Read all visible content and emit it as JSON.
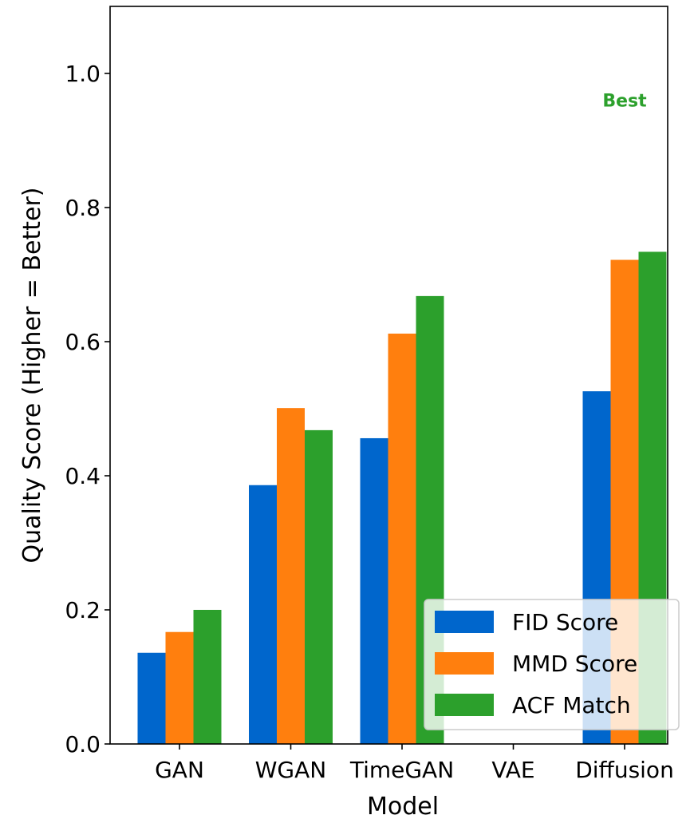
{
  "chart_data": {
    "type": "bar",
    "title": "",
    "xlabel": "Model",
    "ylabel": "Quality Score (Higher = Better)",
    "categories": [
      "GAN",
      "WGAN",
      "TimeGAN",
      "VAE",
      "Diffusion"
    ],
    "ylim": [
      0,
      1.1
    ],
    "yticks": [
      0.0,
      0.2,
      0.4,
      0.6,
      0.8,
      1.0
    ],
    "ytick_labels": [
      "0.0",
      "0.2",
      "0.4",
      "0.6",
      "0.8",
      "1.0"
    ],
    "series": [
      {
        "name": "FID Score",
        "color": "#0066cc",
        "values": [
          0.136,
          0.386,
          0.456,
          0,
          0.526
        ]
      },
      {
        "name": "MMD Score",
        "color": "#ff7f0e",
        "values": [
          0.167,
          0.501,
          0.612,
          0,
          0.722
        ]
      },
      {
        "name": "ACF Match",
        "color": "#2ca02c",
        "values": [
          0.2,
          0.468,
          0.668,
          0,
          0.734
        ]
      }
    ],
    "annotations": [
      {
        "text": "Best",
        "color": "#2ca02c",
        "category": "Diffusion",
        "y": 0.96
      }
    ],
    "legend_position": "lower-right",
    "grid": false
  }
}
